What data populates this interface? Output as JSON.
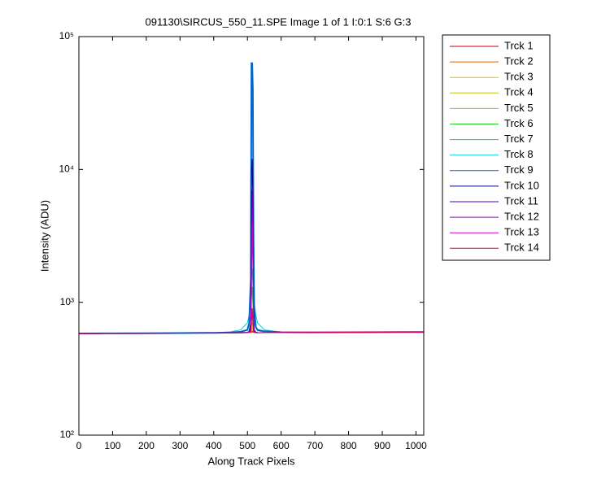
{
  "chart_data": {
    "type": "line",
    "title": "091130\\SIRCUS_550_11.SPE  Image 1 of 1  I:0:1  S:6  G:3",
    "xlabel": "Along Track Pixels",
    "ylabel": "Intensity (ADU)",
    "log_y": true,
    "legend": "outside-right",
    "x": [
      0,
      100,
      200,
      300,
      400,
      450,
      480,
      500,
      505,
      510,
      512,
      514,
      516,
      518,
      520,
      525,
      530,
      550,
      600,
      700,
      800,
      900,
      1000,
      1023
    ],
    "series": [
      {
        "name": "Trck 1",
        "color": "#cc0000",
        "values": [
          580,
          583,
          585,
          587,
          588,
          589,
          590,
          591,
          592,
          594,
          596,
          600,
          598,
          594,
          592,
          591,
          590,
          591,
          592,
          593,
          594,
          595,
          596,
          596
        ]
      },
      {
        "name": "Trck 2",
        "color": "#e06000",
        "values": [
          581,
          583,
          585,
          586,
          588,
          589,
          590,
          591,
          593,
          596,
          600,
          610,
          604,
          596,
          592,
          591,
          590,
          591,
          592,
          593,
          594,
          595,
          596,
          596
        ]
      },
      {
        "name": "Trck 3",
        "color": "#e0c000",
        "values": [
          580,
          582,
          584,
          586,
          588,
          589,
          590,
          591,
          594,
          600,
          620,
          640,
          620,
          600,
          593,
          591,
          590,
          591,
          592,
          593,
          594,
          595,
          596,
          596
        ]
      },
      {
        "name": "Trck 4",
        "color": "#c8c800",
        "values": [
          581,
          583,
          585,
          587,
          588,
          589,
          590,
          592,
          596,
          610,
          660,
          700,
          650,
          610,
          595,
          592,
          591,
          591,
          592,
          593,
          594,
          595,
          596,
          597
        ]
      },
      {
        "name": "Trck 5",
        "color": "#80d000",
        "values": [
          580,
          583,
          585,
          587,
          588,
          589,
          591,
          593,
          600,
          640,
          800,
          900,
          760,
          640,
          600,
          593,
          591,
          591,
          592,
          593,
          594,
          595,
          596,
          596
        ]
      },
      {
        "name": "Trck 6",
        "color": "#20d020",
        "values": [
          581,
          583,
          585,
          587,
          588,
          590,
          591,
          595,
          610,
          700,
          1100,
          1300,
          1000,
          700,
          610,
          595,
          592,
          591,
          592,
          593,
          594,
          595,
          596,
          597
        ]
      },
      {
        "name": "Trck 7",
        "color": "#00d090",
        "values": [
          580,
          583,
          585,
          587,
          589,
          592,
          598,
          620,
          660,
          800,
          1500,
          1800,
          1400,
          900,
          700,
          640,
          610,
          596,
          593,
          593,
          594,
          595,
          596,
          596
        ]
      },
      {
        "name": "Trck 8",
        "color": "#00d0d0",
        "values": [
          583,
          585,
          586,
          588,
          590,
          600,
          620,
          700,
          800,
          1000,
          2500,
          4000,
          3000,
          1500,
          1000,
          800,
          700,
          620,
          598,
          595,
          596,
          597,
          598,
          598
        ]
      },
      {
        "name": "Trck 9",
        "color": "#0066cc",
        "values": [
          582,
          584,
          585,
          587,
          589,
          592,
          600,
          620,
          700,
          1500,
          63000,
          63000,
          40000,
          3000,
          900,
          650,
          620,
          605,
          595,
          594,
          595,
          596,
          597,
          597
        ]
      },
      {
        "name": "Trck 10",
        "color": "#000080",
        "values": [
          581,
          583,
          585,
          587,
          588,
          590,
          591,
          594,
          600,
          700,
          10000,
          12000,
          6000,
          900,
          620,
          596,
          592,
          591,
          592,
          593,
          594,
          595,
          596,
          597
        ]
      },
      {
        "name": "Trck 11",
        "color": "#4000c0",
        "values": [
          580,
          583,
          585,
          587,
          588,
          589,
          591,
          593,
          598,
          650,
          3000,
          5000,
          2500,
          700,
          600,
          593,
          591,
          591,
          592,
          593,
          594,
          595,
          596,
          596
        ]
      },
      {
        "name": "Trck 12",
        "color": "#9000c0",
        "values": [
          581,
          583,
          585,
          587,
          588,
          589,
          590,
          592,
          596,
          620,
          2000,
          7000,
          3000,
          650,
          598,
          592,
          591,
          591,
          592,
          593,
          594,
          595,
          596,
          597
        ]
      },
      {
        "name": "Trck 13",
        "color": "#d000c0",
        "values": [
          580,
          583,
          585,
          587,
          588,
          589,
          590,
          592,
          595,
          610,
          1200,
          4000,
          2000,
          620,
          596,
          592,
          591,
          591,
          592,
          593,
          594,
          595,
          596,
          596
        ]
      },
      {
        "name": "Trck 14",
        "color": "#d00060",
        "values": [
          581,
          583,
          585,
          587,
          588,
          589,
          590,
          591,
          594,
          600,
          700,
          900,
          700,
          600,
          593,
          591,
          590,
          591,
          592,
          593,
          594,
          595,
          596,
          597
        ]
      }
    ],
    "xlim": [
      0,
      1023
    ],
    "xticks": [
      0,
      100,
      200,
      300,
      400,
      500,
      600,
      700,
      800,
      900,
      1000
    ],
    "ylim": [
      100,
      100000
    ],
    "yticks": [
      {
        "value": 100,
        "label": "10²"
      },
      {
        "value": 1000,
        "label": "10³"
      },
      {
        "value": 10000,
        "label": "10⁴"
      },
      {
        "value": 100000,
        "label": "10⁵"
      }
    ]
  }
}
